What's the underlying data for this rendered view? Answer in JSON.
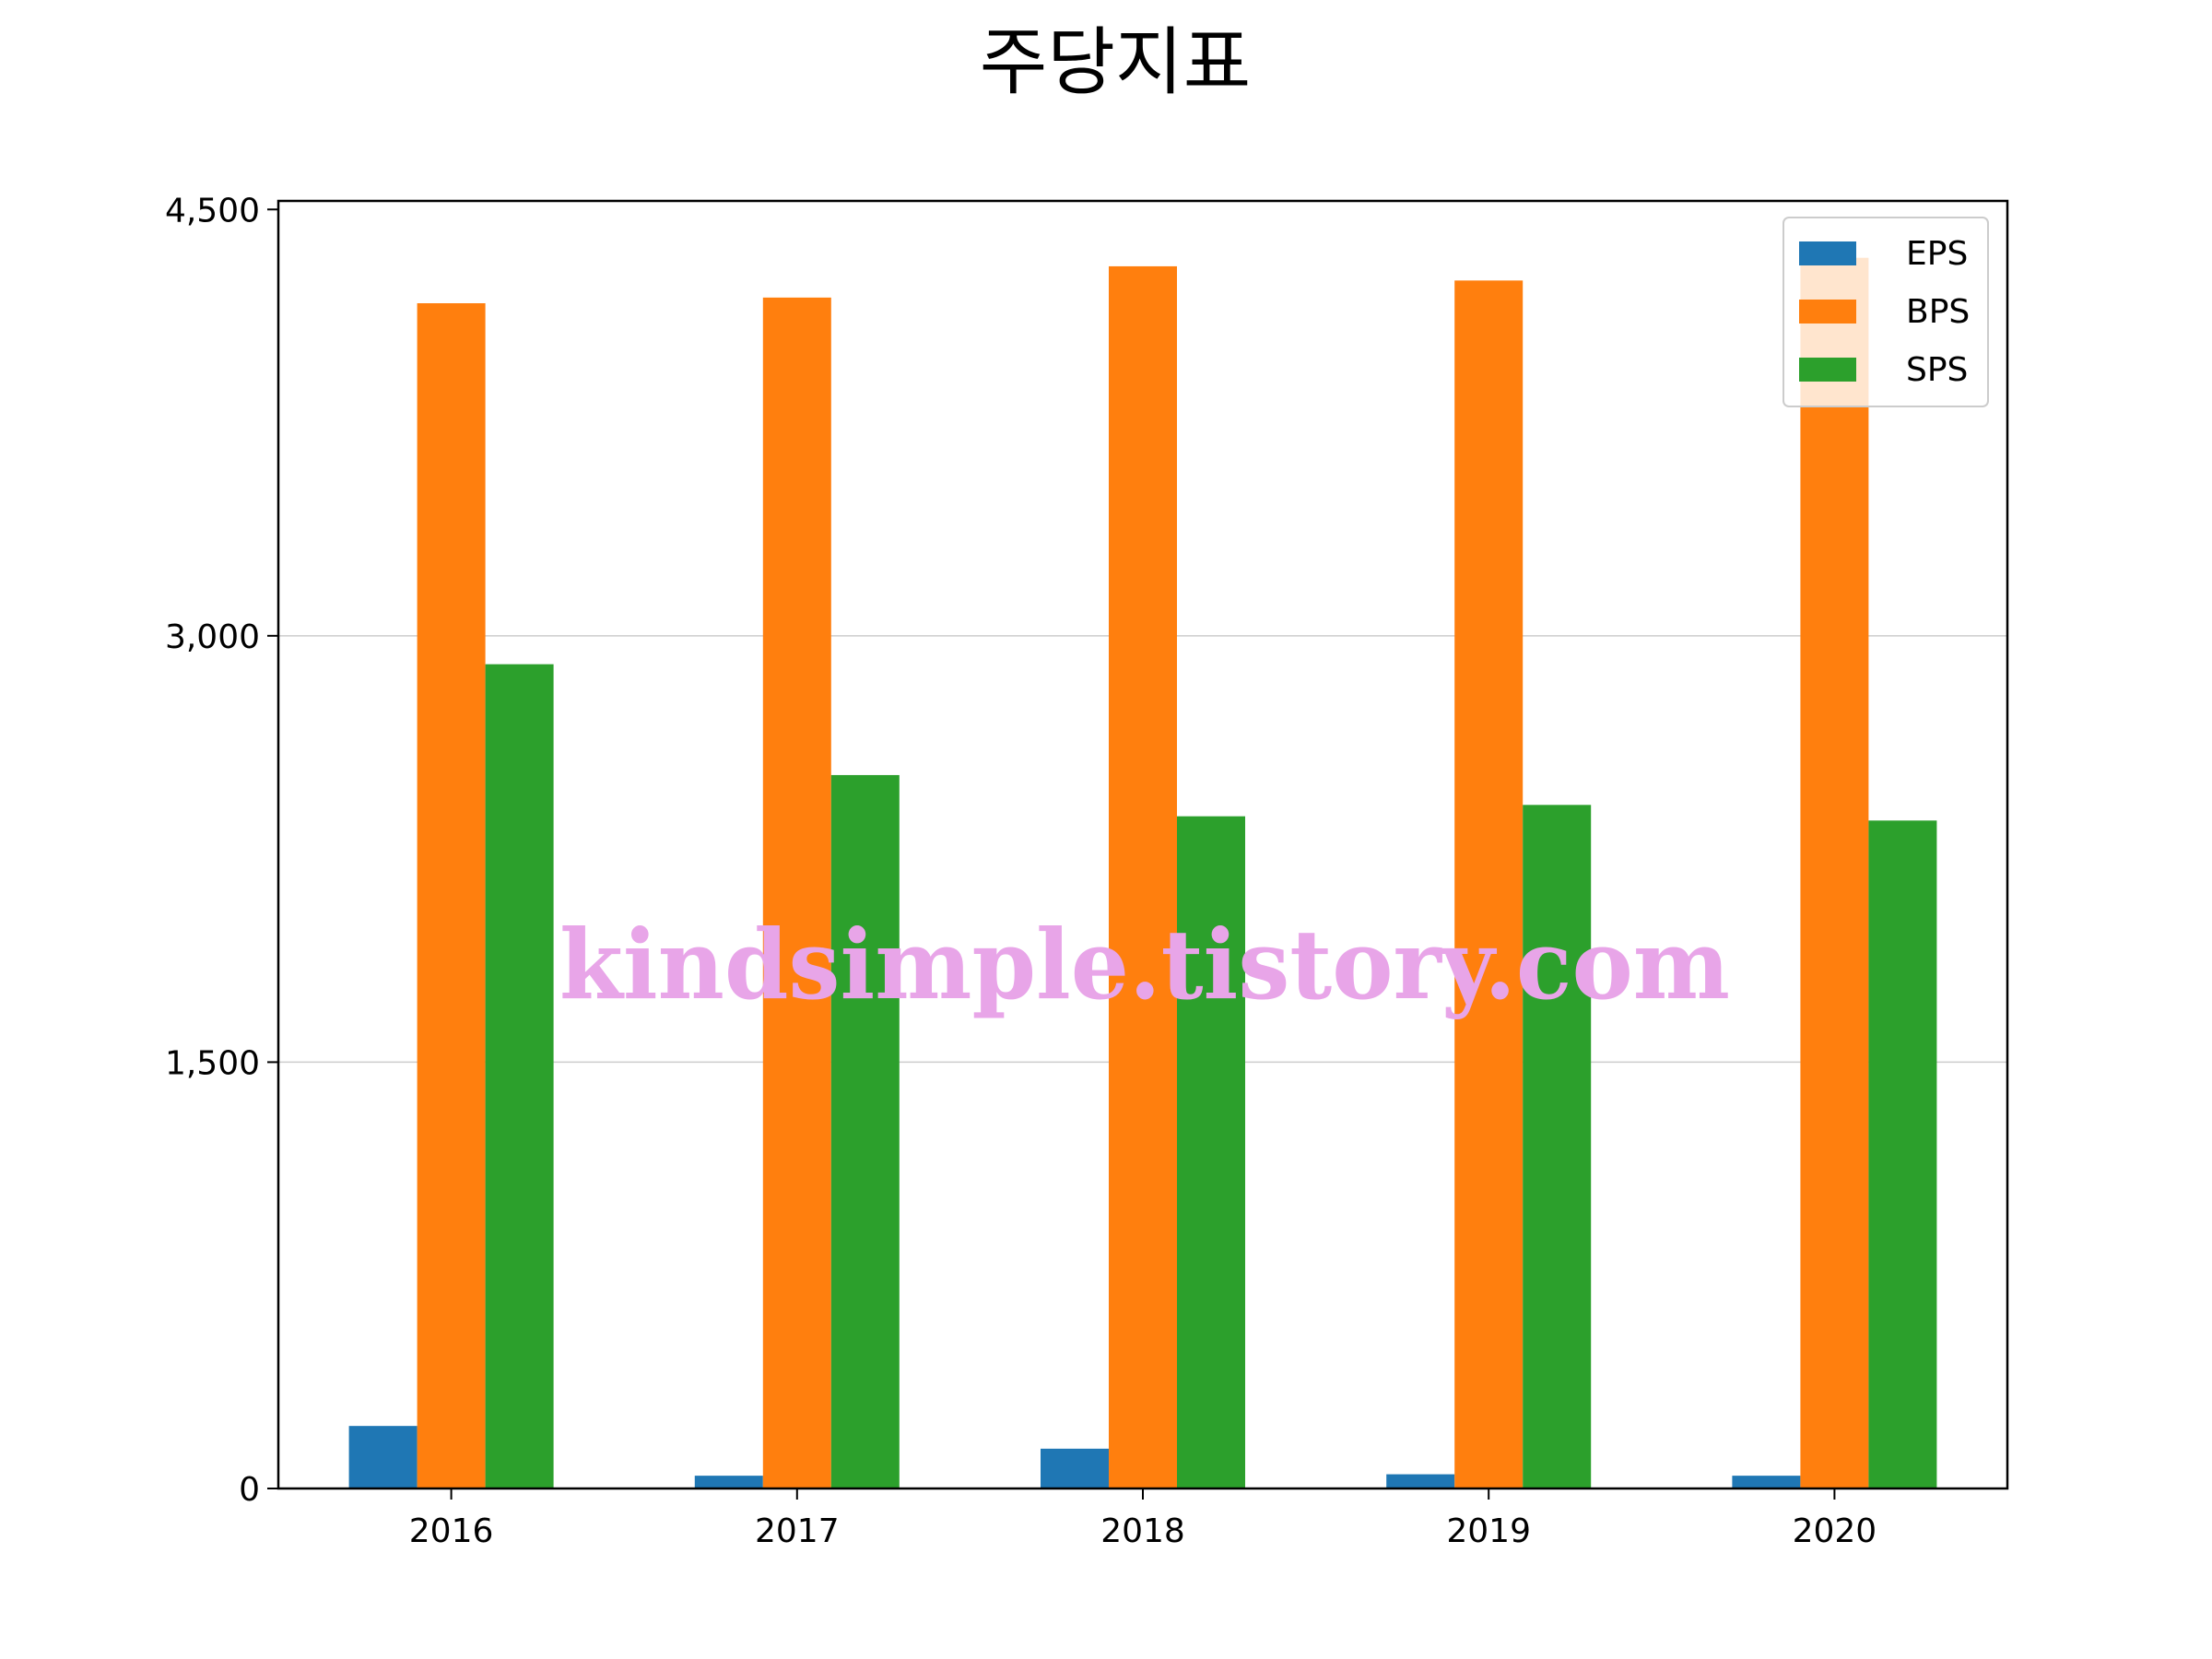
{
  "chart_data": {
    "type": "bar",
    "title": "주당지표",
    "categories": [
      "2016",
      "2017",
      "2018",
      "2019",
      "2020"
    ],
    "series": [
      {
        "name": "EPS",
        "color": "#1f77b4",
        "values": [
          220,
          45,
          140,
          50,
          45
        ]
      },
      {
        "name": "BPS",
        "color": "#ff7f0e",
        "values": [
          4170,
          4190,
          4300,
          4250,
          4330
        ]
      },
      {
        "name": "SPS",
        "color": "#2ca02c",
        "values": [
          2900,
          2510,
          2365,
          2405,
          2350
        ]
      }
    ],
    "xlabel": "",
    "ylabel": "",
    "ylim": [
      0,
      4530
    ],
    "yticks": [
      0,
      1500,
      3000,
      4500
    ],
    "ytick_labels": [
      "0",
      "1,500",
      "3,000",
      "4,500"
    ],
    "grid": "horizontal",
    "legend_position": "top-right"
  },
  "watermark": "kindsimple.tistory.com"
}
